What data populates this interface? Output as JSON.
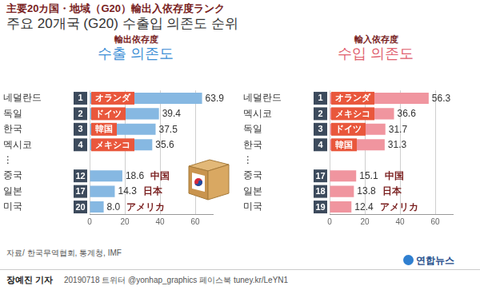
{
  "title": "主要20カ国・地域（G20）輸出入依存度ランク",
  "subtitle": "주요 20개국 (G20) 수출입 의존도 순위",
  "source": "자료/ 한국무역협회, 통계청, IMF",
  "author": "장예진 기자",
  "credit": "20190718 트위터 @yonhap_graphics  페이스북 tuney.kr/LeYN1",
  "logo": "연합뉴스",
  "chart_data": [
    {
      "type": "bar",
      "orientation": "horizontal",
      "title": "수출 의존도",
      "subtitle": "輸出依存度",
      "categories": [
        "네덜란드",
        "독일",
        "한국",
        "멕시코",
        "⋮",
        "중국",
        "일본",
        "미국"
      ],
      "ranks": [
        1,
        2,
        3,
        4,
        null,
        12,
        17,
        20
      ],
      "labels_ja": [
        "オランダ",
        "ドイツ",
        "韓国",
        "メキシコ",
        null,
        "中国",
        "日本",
        "アメリカ"
      ],
      "values": [
        63.9,
        39.4,
        37.5,
        35.6,
        null,
        18.6,
        14.3,
        8.0
      ],
      "value_labels": [
        "63.9",
        "39.4",
        "37.5",
        "35.6",
        null,
        "18.6",
        "14.3",
        "8.0"
      ],
      "color": "#86b8e2",
      "xlim": [
        0,
        70
      ],
      "xticks": [
        0,
        20,
        40,
        60
      ],
      "grid": true,
      "data_labels": true
    },
    {
      "type": "bar",
      "orientation": "horizontal",
      "title": "수입 의존도",
      "subtitle": "輸入依存度",
      "categories": [
        "네덜란드",
        "멕시코",
        "독일",
        "한국",
        "⋮",
        "중국",
        "일본",
        "미국"
      ],
      "ranks": [
        1,
        2,
        3,
        4,
        null,
        17,
        18,
        19
      ],
      "labels_ja": [
        "オランダ",
        "メキシコ",
        "ドイツ",
        "韓国",
        null,
        "中国",
        "日本",
        "アメリカ"
      ],
      "values": [
        56.3,
        36.6,
        31.7,
        31.3,
        null,
        15.1,
        13.8,
        12.4
      ],
      "value_labels": [
        "56.3",
        "36.6",
        "31.7",
        "31.3",
        null,
        "15.1",
        "13.8",
        "12.4"
      ],
      "color": "#f0959f",
      "xlim": [
        0,
        70
      ],
      "xticks": [
        0,
        20,
        40,
        60
      ],
      "grid": true,
      "data_labels": true
    }
  ]
}
